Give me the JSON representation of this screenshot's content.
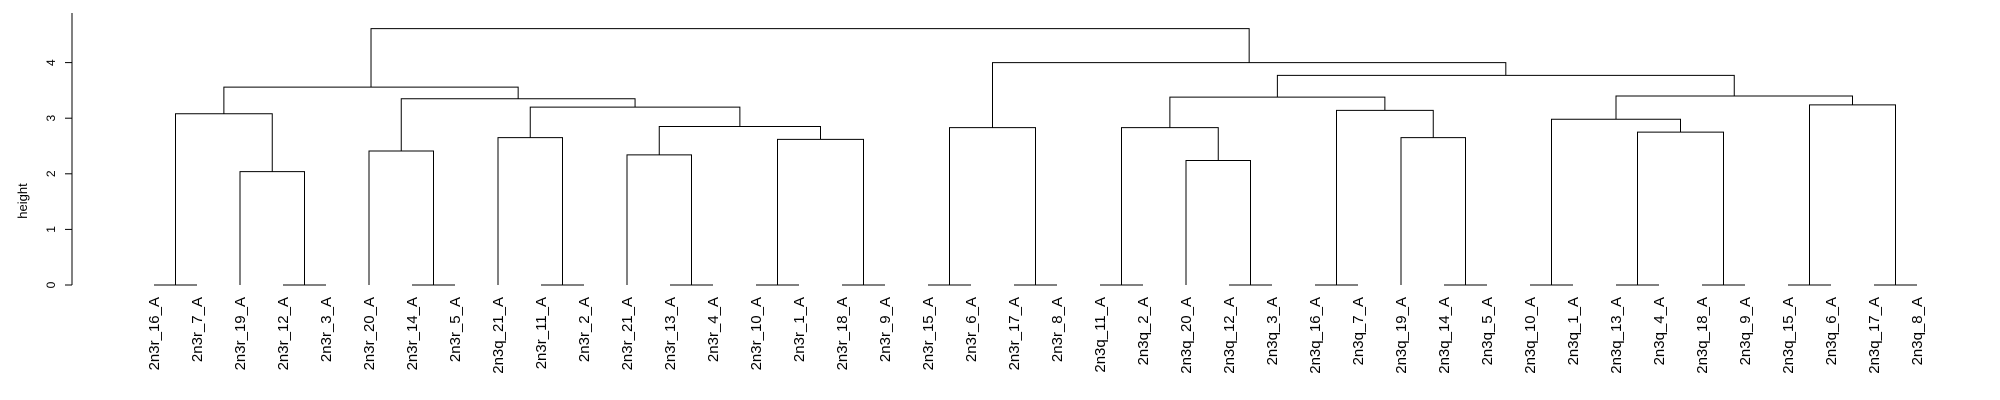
{
  "chart_data": {
    "type": "dendrogram",
    "title": "",
    "xlabel": "",
    "ylabel": "height",
    "ylim": [
      0,
      4.9
    ],
    "yticks": [
      0,
      1,
      2,
      3,
      4
    ],
    "grid": false,
    "leaves": [
      "2n3r_16_A",
      "2n3r_7_A",
      "2n3r_19_A",
      "2n3r_12_A",
      "2n3r_3_A",
      "2n3r_20_A",
      "2n3r_14_A",
      "2n3r_5_A",
      "2n3q_21_A",
      "2n3r_11_A",
      "2n3r_2_A",
      "2n3r_21_A",
      "2n3r_13_A",
      "2n3r_4_A",
      "2n3r_10_A",
      "2n3r_1_A",
      "2n3r_18_A",
      "2n3r_9_A",
      "2n3r_15_A",
      "2n3r_6_A",
      "2n3r_17_A",
      "2n3r_8_A",
      "2n3q_11_A",
      "2n3q_2_A",
      "2n3q_20_A",
      "2n3q_12_A",
      "2n3q_3_A",
      "2n3q_16_A",
      "2n3q_7_A",
      "2n3q_19_A",
      "2n3q_14_A",
      "2n3q_5_A",
      "2n3q_10_A",
      "2n3q_1_A",
      "2n3q_13_A",
      "2n3q_4_A",
      "2n3q_18_A",
      "2n3q_9_A",
      "2n3q_15_A",
      "2n3q_6_A",
      "2n3q_17_A",
      "2n3q_8_A"
    ],
    "merges": [
      {
        "id": "m1",
        "left": "2n3r_16_A",
        "right": "2n3r_7_A",
        "height": 0
      },
      {
        "id": "m2",
        "left": "2n3r_12_A",
        "right": "2n3r_3_A",
        "height": 0
      },
      {
        "id": "m3",
        "left": "2n3r_19_A",
        "right": "m2",
        "height": 2.04
      },
      {
        "id": "m4",
        "left": "m1",
        "right": "m3",
        "height": 3.08
      },
      {
        "id": "m5",
        "left": "2n3r_14_A",
        "right": "2n3r_5_A",
        "height": 0
      },
      {
        "id": "m6",
        "left": "2n3r_20_A",
        "right": "m5",
        "height": 2.41
      },
      {
        "id": "m7",
        "left": "2n3r_11_A",
        "right": "2n3r_2_A",
        "height": 0
      },
      {
        "id": "m8",
        "left": "2n3q_21_A",
        "right": "m7",
        "height": 2.65
      },
      {
        "id": "m9",
        "left": "2n3r_13_A",
        "right": "2n3r_4_A",
        "height": 0
      },
      {
        "id": "m10",
        "left": "2n3r_21_A",
        "right": "m9",
        "height": 2.34
      },
      {
        "id": "m11",
        "left": "2n3r_10_A",
        "right": "2n3r_1_A",
        "height": 0
      },
      {
        "id": "m12",
        "left": "2n3r_18_A",
        "right": "2n3r_9_A",
        "height": 0
      },
      {
        "id": "m13",
        "left": "m11",
        "right": "m12",
        "height": 2.62
      },
      {
        "id": "m14",
        "left": "m10",
        "right": "m13",
        "height": 2.85
      },
      {
        "id": "m15",
        "left": "m8",
        "right": "m14",
        "height": 3.2
      },
      {
        "id": "m16",
        "left": "m6",
        "right": "m15",
        "height": 3.35
      },
      {
        "id": "m17",
        "left": "m4",
        "right": "m16",
        "height": 3.56
      },
      {
        "id": "m18",
        "left": "2n3r_15_A",
        "right": "2n3r_6_A",
        "height": 0
      },
      {
        "id": "m19",
        "left": "2n3r_17_A",
        "right": "2n3r_8_A",
        "height": 0
      },
      {
        "id": "m20",
        "left": "m18",
        "right": "m19",
        "height": 2.83
      },
      {
        "id": "m21",
        "left": "2n3q_11_A",
        "right": "2n3q_2_A",
        "height": 0
      },
      {
        "id": "m22",
        "left": "2n3q_12_A",
        "right": "2n3q_3_A",
        "height": 0
      },
      {
        "id": "m23",
        "left": "2n3q_20_A",
        "right": "m22",
        "height": 2.24
      },
      {
        "id": "m24",
        "left": "m21",
        "right": "m23",
        "height": 2.83
      },
      {
        "id": "m25",
        "left": "2n3q_16_A",
        "right": "2n3q_7_A",
        "height": 0
      },
      {
        "id": "m26",
        "left": "2n3q_14_A",
        "right": "2n3q_5_A",
        "height": 0
      },
      {
        "id": "m27",
        "left": "2n3q_19_A",
        "right": "m26",
        "height": 2.65
      },
      {
        "id": "m28",
        "left": "m25",
        "right": "m27",
        "height": 3.14
      },
      {
        "id": "m29",
        "left": "m24",
        "right": "m28",
        "height": 3.38
      },
      {
        "id": "m30",
        "left": "2n3q_10_A",
        "right": "2n3q_1_A",
        "height": 0
      },
      {
        "id": "m31",
        "left": "2n3q_13_A",
        "right": "2n3q_4_A",
        "height": 0
      },
      {
        "id": "m32",
        "left": "2n3q_18_A",
        "right": "2n3q_9_A",
        "height": 0
      },
      {
        "id": "m33",
        "left": "m31",
        "right": "m32",
        "height": 2.75
      },
      {
        "id": "m34",
        "left": "m30",
        "right": "m33",
        "height": 2.98
      },
      {
        "id": "m35",
        "left": "2n3q_15_A",
        "right": "2n3q_6_A",
        "height": 0
      },
      {
        "id": "m36",
        "left": "2n3q_17_A",
        "right": "2n3q_8_A",
        "height": 0
      },
      {
        "id": "m37",
        "left": "m36",
        "right": "m35",
        "height": 3.24
      },
      {
        "id": "m38",
        "left": "m34",
        "right": "m37",
        "height": 3.4
      },
      {
        "id": "m39",
        "left": "m29",
        "right": "m38",
        "height": 3.77
      },
      {
        "id": "m40",
        "left": "m20",
        "right": "m39",
        "height": 4.0
      },
      {
        "id": "m41",
        "left": "m17",
        "right": "m40",
        "height": 4.61
      }
    ]
  }
}
